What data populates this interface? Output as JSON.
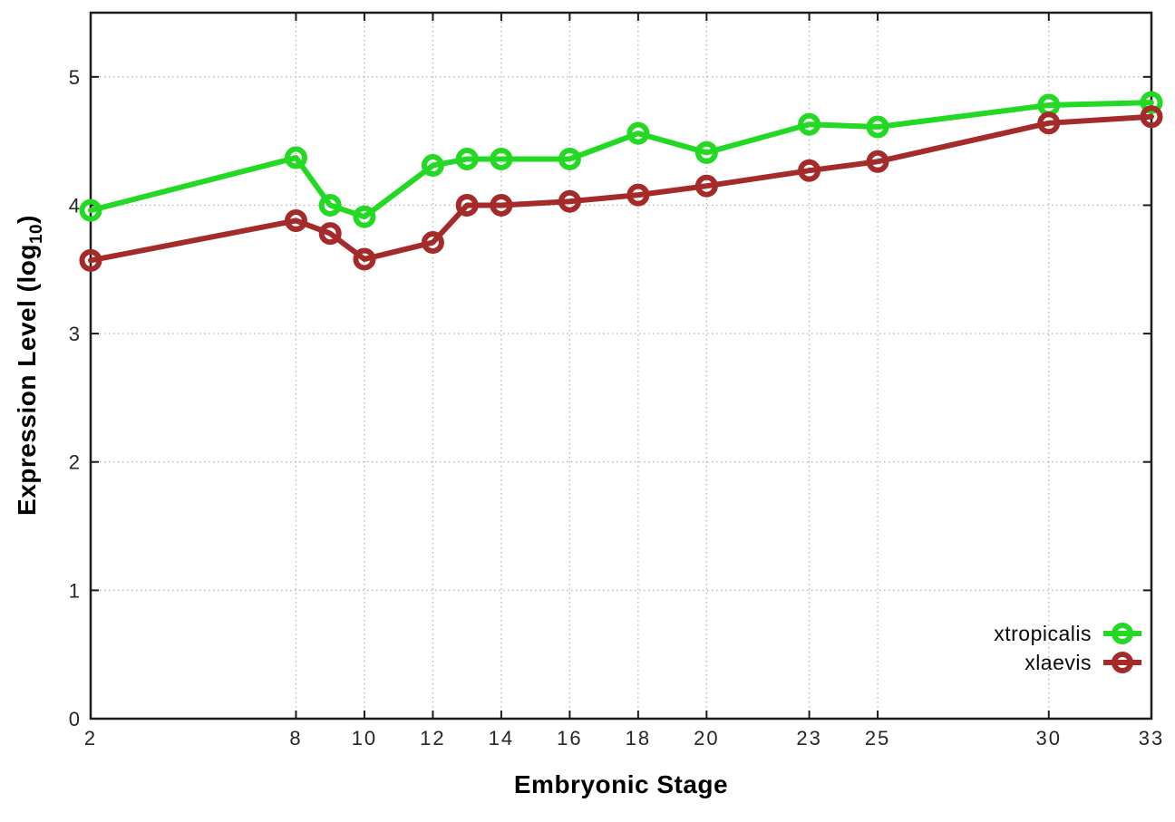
{
  "chart_data": {
    "type": "line",
    "title": "",
    "xlabel": "Embryonic Stage",
    "ylabel": "Expression Level (log10)",
    "ylabel_parts": {
      "main": "Expression Level (log",
      "sub": "10",
      "end": ")"
    },
    "x": [
      2,
      8,
      9,
      10,
      12,
      13,
      14,
      16,
      18,
      20,
      23,
      25,
      30,
      33
    ],
    "series": [
      {
        "name": "xtropicalis",
        "color": "#23d923",
        "values": [
          3.96,
          4.37,
          4.0,
          3.91,
          4.31,
          4.36,
          4.36,
          4.36,
          4.56,
          4.41,
          4.63,
          4.61,
          4.78,
          4.8
        ]
      },
      {
        "name": "xlaevis",
        "color": "#a52a2a",
        "values": [
          3.57,
          3.88,
          3.78,
          3.58,
          3.71,
          4.0,
          4.0,
          4.03,
          4.08,
          4.15,
          4.27,
          4.34,
          4.64,
          4.69
        ]
      }
    ],
    "x_ticks": [
      2,
      8,
      10,
      12,
      14,
      16,
      18,
      20,
      23,
      25,
      30,
      33
    ],
    "y_ticks": [
      0,
      1,
      2,
      3,
      4,
      5
    ],
    "xlim": [
      2,
      33
    ],
    "ylim": [
      0,
      5.5
    ],
    "grid": true,
    "grid_style": "dotted",
    "marker": "open-circle",
    "legend_position": "bottom-right",
    "style": {
      "grid_color": "#b9b9b9",
      "axis_color": "#1c1c1c",
      "tick_text_color": "#262626"
    }
  }
}
